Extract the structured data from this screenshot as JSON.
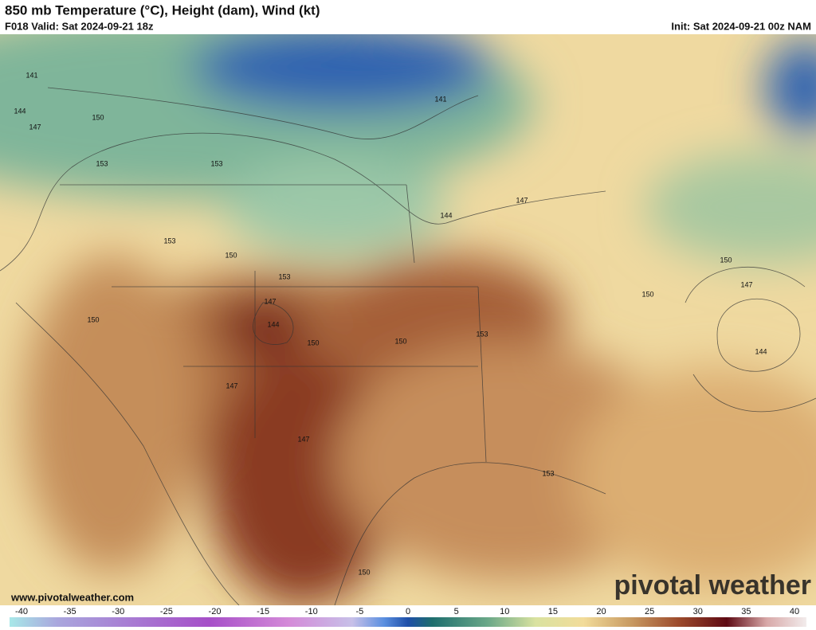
{
  "header": {
    "title": "850 mb Temperature (°C), Height (dam), Wind (kt)",
    "valid": "F018 Valid: Sat 2024-09-21 18z",
    "init": "Init: Sat 2024-09-21 00z NAM"
  },
  "map": {
    "contour_labels": [
      141,
      144,
      147,
      150,
      153,
      141,
      153,
      153,
      150,
      153,
      147,
      144,
      150,
      150,
      147,
      147,
      150,
      153,
      144,
      147,
      150,
      150,
      147,
      144,
      153,
      150
    ]
  },
  "watermark": "pivotal weather",
  "site": "www.pivotalweather.com",
  "colorbar": {
    "ticks": [
      -40,
      -35,
      -30,
      -25,
      -20,
      -15,
      -10,
      -5,
      0,
      5,
      10,
      15,
      20,
      25,
      30,
      35,
      40
    ]
  }
}
